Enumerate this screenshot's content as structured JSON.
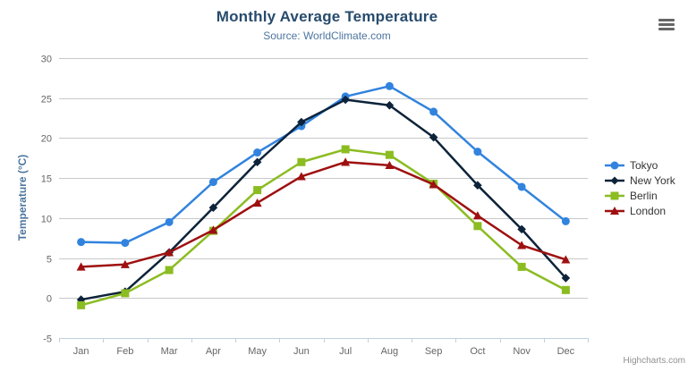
{
  "credits": {
    "label": "Highcharts.com"
  },
  "export_menu": {
    "icon": "hamburger-menu-icon"
  },
  "chart_data": {
    "type": "line",
    "title": "Monthly Average Temperature",
    "subtitle": "Source: WorldClimate.com",
    "categories": [
      "Jan",
      "Feb",
      "Mar",
      "Apr",
      "May",
      "Jun",
      "Jul",
      "Aug",
      "Sep",
      "Oct",
      "Nov",
      "Dec"
    ],
    "series": [
      {
        "name": "Tokyo",
        "color": "#3183de",
        "marker": "circle",
        "values": [
          7.0,
          6.9,
          9.5,
          14.5,
          18.2,
          21.5,
          25.2,
          26.5,
          23.3,
          18.3,
          13.9,
          9.6
        ]
      },
      {
        "name": "New York",
        "color": "#0d233a",
        "marker": "diamond",
        "values": [
          -0.2,
          0.8,
          5.7,
          11.3,
          17.0,
          22.0,
          24.8,
          24.1,
          20.1,
          14.1,
          8.6,
          2.5
        ]
      },
      {
        "name": "Berlin",
        "color": "#8bbc21",
        "marker": "square",
        "values": [
          -0.9,
          0.6,
          3.5,
          8.4,
          13.5,
          17.0,
          18.6,
          17.9,
          14.3,
          9.0,
          3.9,
          1.0
        ]
      },
      {
        "name": "London",
        "color": "#9e1010",
        "marker": "triangle",
        "values": [
          3.9,
          4.2,
          5.7,
          8.5,
          11.9,
          15.2,
          17.0,
          16.6,
          14.2,
          10.3,
          6.6,
          4.8
        ]
      }
    ],
    "xlabel": "",
    "ylabel": "Temperature (°C)",
    "ylim": [
      -5,
      30
    ],
    "ytick_step": 5,
    "grid": true,
    "legend_position": "right",
    "styles": {
      "title_color": "#274b6d",
      "subtitle_color": "#4d759e",
      "ylabel_color": "#4d759e",
      "axis_label_color": "#666666",
      "grid_color": "#c8c8c8",
      "axis_line_color": "#c0d0e0",
      "tick_color": "#c0d0e0",
      "legend_text_color": "#333333",
      "credits_color": "#909090",
      "menu_icon_color": "#666666",
      "background": "#ffffff"
    }
  }
}
